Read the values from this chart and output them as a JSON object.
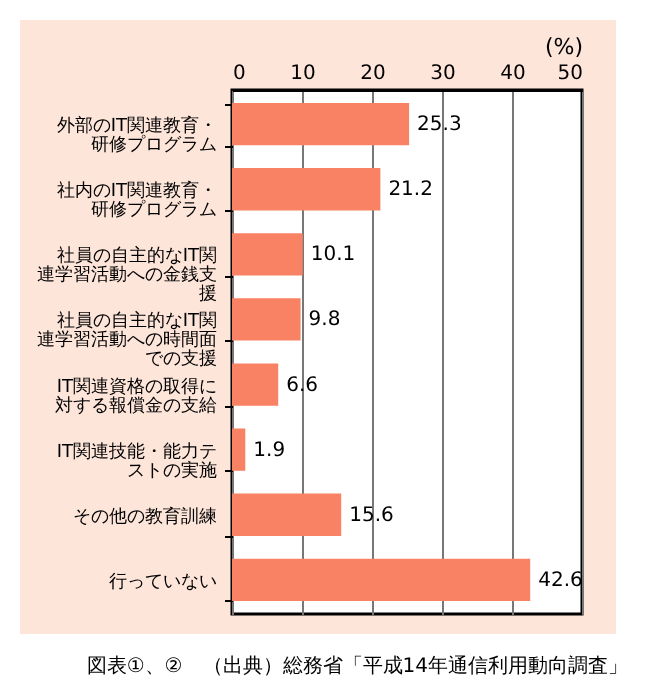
{
  "chart_data": {
    "type": "bar",
    "orientation": "horizontal",
    "categories": [
      "外部のIT関連教育・研修プログラム",
      "社内のIT関連教育・研修プログラム",
      "社員の自主的なIT関連学習活動への金銭支援",
      "社員の自主的なIT関連学習活動への時間面での支援",
      "IT関連資格の取得に対する報償金の支給",
      "IT関連技能・能力テストの実施",
      "その他の教育訓練",
      "行っていない"
    ],
    "values": [
      25.3,
      21.2,
      10.1,
      9.8,
      6.6,
      1.9,
      15.6,
      42.6
    ],
    "color": "#fa8264",
    "xlabel": "(%)",
    "xlim": [
      0,
      50
    ],
    "xticks": [
      0,
      10,
      20,
      30,
      40,
      50
    ],
    "grid": "x",
    "data_labels": true,
    "annotations": [
      "図表①、②　（出典）総務省「平成14年通信利用動向調査」"
    ]
  }
}
